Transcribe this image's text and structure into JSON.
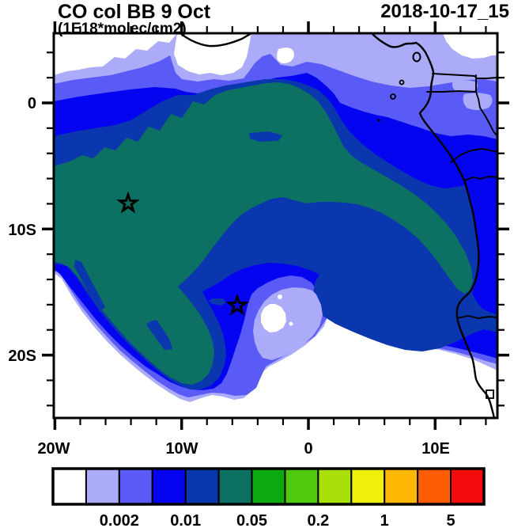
{
  "header": {
    "title": "CO col BB 9 Oct",
    "units_label": "(1E18*molec/cm2)",
    "timestamp": "2018-10-17_15"
  },
  "axes": {
    "x": {
      "tick_labels": [
        "20W",
        "10W",
        "0",
        "10E"
      ]
    },
    "y": {
      "tick_labels": [
        "0",
        "10S",
        "20S"
      ]
    }
  },
  "colorbar": {
    "colors": [
      "#FFFFFE",
      "#ABABFA",
      "#5A5AF6",
      "#0404F0",
      "#0A36AE",
      "#0C7063",
      "#0CAA10",
      "#50C80E",
      "#AAE00A",
      "#F0F00C",
      "#FFB806",
      "#FF5C06",
      "#F30C0C"
    ],
    "labels": [
      "0.002",
      "0.01",
      "0.05",
      "0.2",
      "1",
      "5"
    ]
  },
  "chart_data": {
    "type": "heatmap",
    "subtype": "filled-contour-map",
    "title": "CO col BB 9 Oct",
    "units": "1E18*molec/cm2",
    "valid_time": "2018-10-17_15",
    "lon_range": [
      -20,
      15
    ],
    "lat_range": [
      -25,
      5.5
    ],
    "lon_major_ticks": [
      "20W",
      "10W",
      "0",
      "10E"
    ],
    "lat_major_ticks": [
      "0",
      "10S",
      "20S"
    ],
    "minor_tick_interval_deg": 2,
    "contour_levels": [
      0.001,
      0.002,
      0.005,
      0.01,
      0.02,
      0.05,
      0.1,
      0.2,
      0.5,
      1,
      2,
      5
    ],
    "labeled_levels": [
      0.002,
      0.01,
      0.05,
      0.2,
      1,
      5
    ],
    "band_colors": [
      "#FFFFFE",
      "#ABABFA",
      "#5A5AF6",
      "#0404F0",
      "#0A36AE",
      "#0C7063",
      "#0CAA10",
      "#50C80E",
      "#AAE00A",
      "#F0F00C",
      "#FFB806",
      "#FF5C06",
      "#F30C0C"
    ],
    "max_band_visible": "0.02-0.05",
    "markers": [
      {
        "symbol": "star",
        "lon_deg": -14.2,
        "lat_deg": -8.0
      },
      {
        "symbol": "star",
        "lon_deg": -5.6,
        "lat_deg": -16.1
      }
    ],
    "overlays": [
      "african-coastline",
      "country-borders",
      "islands"
    ],
    "legend_position": "bottom"
  }
}
